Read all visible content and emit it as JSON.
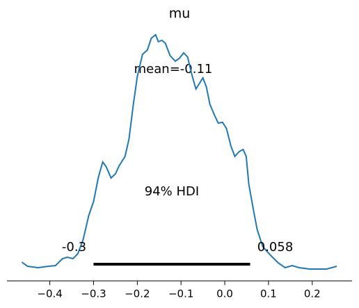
{
  "chart_data": {
    "type": "line",
    "title": "mu",
    "mean_label": "mean=-0.11",
    "hdi_label": "94% HDI",
    "hdi": [
      -0.3,
      0.058
    ],
    "color": "#1f77b4",
    "x": [
      -0.464,
      -0.451,
      -0.427,
      -0.403,
      -0.387,
      -0.371,
      -0.36,
      -0.347,
      -0.336,
      -0.324,
      -0.311,
      -0.3,
      -0.289,
      -0.279,
      -0.271,
      -0.26,
      -0.25,
      -0.241,
      -0.228,
      -0.219,
      -0.209,
      -0.2,
      -0.188,
      -0.177,
      -0.168,
      -0.158,
      -0.152,
      -0.144,
      -0.136,
      -0.125,
      -0.113,
      -0.104,
      -0.094,
      -0.085,
      -0.075,
      -0.066,
      -0.058,
      -0.05,
      -0.042,
      -0.034,
      -0.024,
      -0.015,
      -0.005,
      0.004,
      0.014,
      0.023,
      0.033,
      0.042,
      0.049,
      0.055,
      0.065,
      0.074,
      0.087,
      0.106,
      0.122,
      0.138,
      0.154,
      0.17,
      0.194,
      0.233,
      0.256
    ],
    "values": [
      0.11,
      0.05,
      0.03,
      0.05,
      0.06,
      0.16,
      0.18,
      0.16,
      0.23,
      0.43,
      0.78,
      0.98,
      1.33,
      1.55,
      1.48,
      1.32,
      1.38,
      1.5,
      1.63,
      1.88,
      2.38,
      2.78,
      3.1,
      3.16,
      3.33,
      3.38,
      3.28,
      3.3,
      3.26,
      3.08,
      3.0,
      3.04,
      3.12,
      3.06,
      2.8,
      2.6,
      2.68,
      2.76,
      2.63,
      2.38,
      2.23,
      2.11,
      2.12,
      2.03,
      1.78,
      1.63,
      1.7,
      1.73,
      1.63,
      1.23,
      0.88,
      0.58,
      0.33,
      0.2,
      0.1,
      0.03,
      0.06,
      0.03,
      0.01,
      0.01,
      0.05
    ],
    "xlim": [
      -0.498,
      0.291
    ],
    "ylim": [
      0,
      3.5
    ],
    "xticks": [
      {
        "value": -0.4,
        "label": "−0.4"
      },
      {
        "value": -0.3,
        "label": "−0.3"
      },
      {
        "value": -0.2,
        "label": "−0.2"
      },
      {
        "value": -0.1,
        "label": "−0.1"
      },
      {
        "value": 0,
        "label": "0.0"
      },
      0.1,
      0.2
    ]
  }
}
